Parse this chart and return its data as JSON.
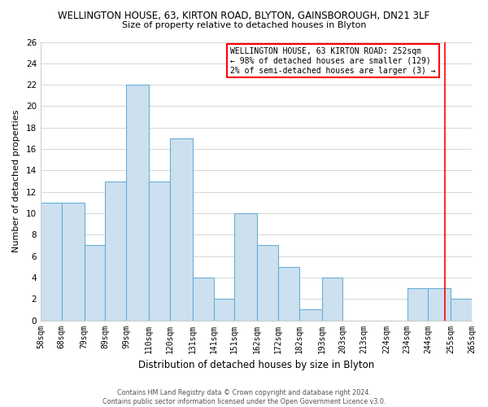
{
  "title": "WELLINGTON HOUSE, 63, KIRTON ROAD, BLYTON, GAINSBOROUGH, DN21 3LF",
  "subtitle": "Size of property relative to detached houses in Blyton",
  "xlabel": "Distribution of detached houses by size in Blyton",
  "ylabel": "Number of detached properties",
  "bin_labels": [
    "58sqm",
    "68sqm",
    "79sqm",
    "89sqm",
    "99sqm",
    "110sqm",
    "120sqm",
    "131sqm",
    "141sqm",
    "151sqm",
    "162sqm",
    "172sqm",
    "182sqm",
    "193sqm",
    "203sqm",
    "213sqm",
    "224sqm",
    "234sqm",
    "244sqm",
    "255sqm",
    "265sqm"
  ],
  "bin_edges": [
    58,
    68,
    79,
    89,
    99,
    110,
    120,
    131,
    141,
    151,
    162,
    172,
    182,
    193,
    203,
    213,
    224,
    234,
    244,
    255,
    265
  ],
  "counts": [
    11,
    11,
    7,
    13,
    22,
    13,
    17,
    4,
    2,
    10,
    7,
    5,
    1,
    4,
    0,
    0,
    0,
    3,
    3,
    2
  ],
  "bar_color": "#cce0f0",
  "bar_edge_color": "#6aaed6",
  "red_line_x": 252,
  "annotation_title": "WELLINGTON HOUSE, 63 KIRTON ROAD: 252sqm",
  "annotation_line1": "← 98% of detached houses are smaller (129)",
  "annotation_line2": "2% of semi-detached houses are larger (3) →",
  "footer_line1": "Contains HM Land Registry data © Crown copyright and database right 2024.",
  "footer_line2": "Contains public sector information licensed under the Open Government Licence v3.0.",
  "ylim": [
    0,
    26
  ],
  "yticks": [
    0,
    2,
    4,
    6,
    8,
    10,
    12,
    14,
    16,
    18,
    20,
    22,
    24,
    26
  ],
  "background_color": "#ffffff",
  "grid_color": "#d0d0d0"
}
